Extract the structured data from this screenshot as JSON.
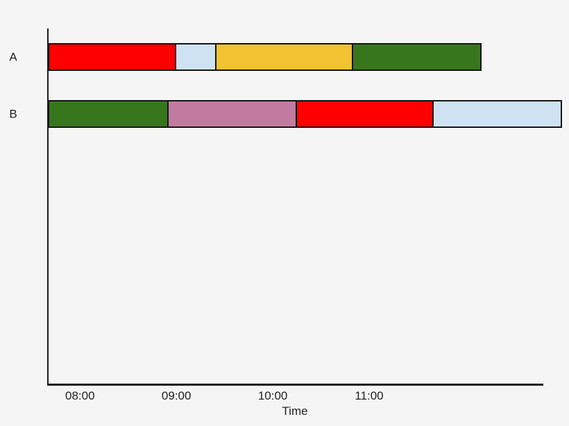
{
  "figure": {
    "background": "#f5f5f6",
    "axis_color": "#1a1a1a",
    "text_color": "#1f1f1f",
    "segment_border_color": "#141414"
  },
  "chart_data": {
    "type": "gantt",
    "title": "",
    "xlabel": "Time",
    "x_ticks": [
      "08:00",
      "09:00",
      "10:00",
      "11:00"
    ],
    "x_range": [
      "07:40",
      "12:50"
    ],
    "grid": false,
    "legend": false,
    "rows": [
      {
        "label": "A",
        "segments": [
          {
            "start": "07:40",
            "end": "09:00",
            "color": "#ff0000",
            "color_name": "red"
          },
          {
            "start": "09:00",
            "end": "09:25",
            "color": "#cfe2f3",
            "color_name": "light-blue"
          },
          {
            "start": "09:25",
            "end": "10:50",
            "color": "#f1c232",
            "color_name": "yellow"
          },
          {
            "start": "10:50",
            "end": "12:10",
            "color": "#38761d",
            "color_name": "dark-green"
          }
        ]
      },
      {
        "label": "B",
        "segments": [
          {
            "start": "07:40",
            "end": "08:55",
            "color": "#38761d",
            "color_name": "dark-green"
          },
          {
            "start": "08:55",
            "end": "10:15",
            "color": "#c27ba0",
            "color_name": "pink"
          },
          {
            "start": "10:15",
            "end": "11:40",
            "color": "#ff0000",
            "color_name": "red"
          },
          {
            "start": "11:40",
            "end": "13:00",
            "color": "#cfe2f3",
            "color_name": "light-blue"
          }
        ]
      }
    ]
  }
}
